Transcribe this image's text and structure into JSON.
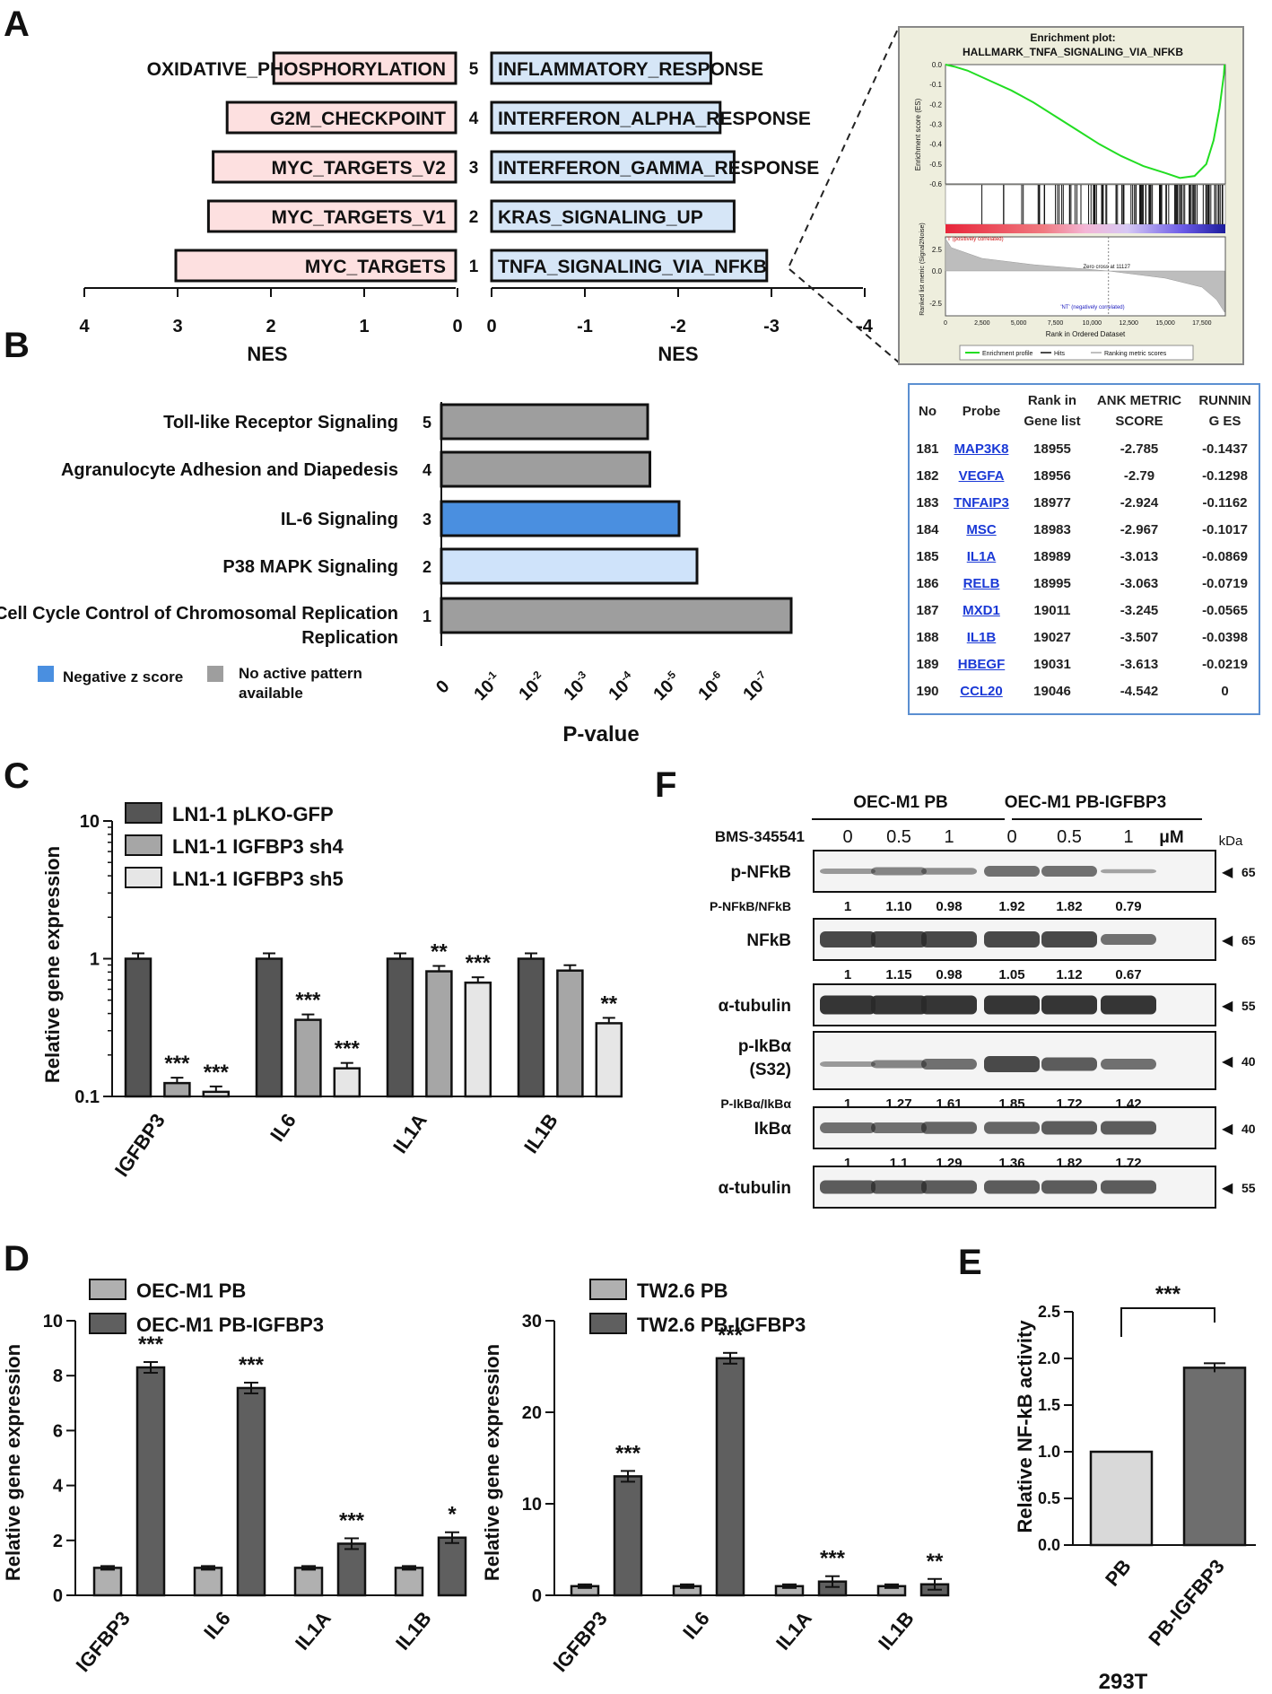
{
  "panel_letters": {
    "A": "A",
    "B": "B",
    "C": "C",
    "D": "D",
    "E": "E",
    "F": "F"
  },
  "panel_A": {
    "left": {
      "xlabel": "NES",
      "ticks": [
        "4",
        "3",
        "2",
        "1",
        "0"
      ],
      "bars": [
        {
          "rank": "5",
          "label": "OXIDATIVE_PHOSPHORYLATION",
          "nes": 1.95
        },
        {
          "rank": "4",
          "label": "G2M_CHECKPOINT",
          "nes": 2.45
        },
        {
          "rank": "3",
          "label": "MYC_TARGETS_V2",
          "nes": 2.6
        },
        {
          "rank": "2",
          "label": "MYC_TARGETS_V1",
          "nes": 2.65
        },
        {
          "rank": "1",
          "label": "MYC_TARGETS",
          "nes": 3.0
        }
      ]
    },
    "right": {
      "xlabel": "NES",
      "ticks": [
        "0",
        "-1",
        "-2",
        "-3",
        "-4"
      ],
      "bars": [
        {
          "label": "INFLAMMATORY_RESPONSE",
          "nes": -2.35
        },
        {
          "label": "INTERFERON_ALPHA_RESPONSE",
          "nes": -2.45
        },
        {
          "label": "INTERFERON_GAMMA_RESPONSE",
          "nes": -2.6
        },
        {
          "label": "KRAS_SIGNALING_UP",
          "nes": -2.6
        },
        {
          "label": "TNFA_SIGNALING_VIA_NFKB",
          "nes": -2.95
        }
      ]
    },
    "gsea": {
      "title1": "Enrichment plot:",
      "title2": "HALLMARK_TNFA_SIGNALING_VIA_NFKB",
      "es_ylabel": "Enrichment score (ES)",
      "es_ticks": [
        "0.0",
        "-0.1",
        "-0.2",
        "-0.3",
        "-0.4",
        "-0.5",
        "-0.6"
      ],
      "rank_ylabel": "Ranked list metric (Signal2Noise)",
      "rank_ticks": [
        "2.5",
        "0.0",
        "-2.5"
      ],
      "pos_label": "'I' (positively correlated)",
      "neg_label": "'NT' (negatively correlated)",
      "zero_cross": "Zero cross at 11127",
      "x_ticks": [
        "0",
        "2,500",
        "5,000",
        "7,500",
        "10,000",
        "12,500",
        "15,000",
        "17,500"
      ],
      "xlabel": "Rank in Ordered Dataset",
      "legend": [
        "Enrichment profile",
        "Hits",
        "Ranking metric scores"
      ]
    },
    "table": {
      "headers": [
        "No",
        "Probe",
        "Rank in Gene list",
        "ANK METRIC SCORE",
        "RUNNIN G ES"
      ],
      "rows": [
        [
          "181",
          "MAP3K8",
          "18955",
          "-2.785",
          "-0.1437"
        ],
        [
          "182",
          "VEGFA",
          "18956",
          "-2.79",
          "-0.1298"
        ],
        [
          "183",
          "TNFAIP3",
          "18977",
          "-2.924",
          "-0.1162"
        ],
        [
          "184",
          "MSC",
          "18983",
          "-2.967",
          "-0.1017"
        ],
        [
          "185",
          "IL1A",
          "18989",
          "-3.013",
          "-0.0869"
        ],
        [
          "186",
          "RELB",
          "18995",
          "-3.063",
          "-0.0719"
        ],
        [
          "187",
          "MXD1",
          "19011",
          "-3.245",
          "-0.0565"
        ],
        [
          "188",
          "IL1B",
          "19027",
          "-3.507",
          "-0.0398"
        ],
        [
          "189",
          "HBEGF",
          "19031",
          "-3.613",
          "-0.0219"
        ],
        [
          "190",
          "CCL20",
          "19046",
          "-4.542",
          "0"
        ]
      ]
    }
  },
  "panel_B": {
    "xlabel": "P-value",
    "bars": [
      {
        "rank": "5",
        "label": "Toll-like Receptor Signaling",
        "neglog10p": 4.6,
        "color": "#9e9e9e"
      },
      {
        "rank": "4",
        "label": "Agranulocyte Adhesion and Diapedesis",
        "neglog10p": 4.65,
        "color": "#9e9e9e"
      },
      {
        "rank": "3",
        "label": "IL-6 Signaling",
        "neglog10p": 5.3,
        "color": "#4a8fe0"
      },
      {
        "rank": "2",
        "label": "P38 MAPK Signaling",
        "neglog10p": 5.7,
        "color": "#cfe3fa"
      },
      {
        "rank": "1",
        "label": "Cell Cycle Control of Chromosomal Replication",
        "neglog10p": 7.8,
        "color": "#9e9e9e"
      }
    ],
    "label_line2": "Replication",
    "legend": [
      {
        "label": "Negative z score",
        "color": "#4a8fe0"
      },
      {
        "label": "No active pattern",
        "label2": "available",
        "color": "#9e9e9e"
      }
    ]
  },
  "panel_C": {
    "ylabel": "Relative gene expression",
    "yticks": [
      "10",
      "1",
      "0.1"
    ],
    "series": [
      {
        "name": "LN1-1 pLKO-GFP",
        "color": "#555555"
      },
      {
        "name": "LN1-1 IGFBP3 sh4",
        "color": "#a6a6a6"
      },
      {
        "name": "LN1-1 IGFBP3 sh5",
        "color": "#e6e6e6"
      }
    ],
    "categories": [
      "IGFBP3",
      "IL6",
      "IL1A",
      "IL1B"
    ],
    "values": [
      [
        1.0,
        0.125,
        0.108
      ],
      [
        1.0,
        0.36,
        0.16
      ],
      [
        1.0,
        0.81,
        0.67
      ],
      [
        1.0,
        0.82,
        0.34
      ]
    ],
    "sig": [
      [
        "",
        "***",
        "***"
      ],
      [
        "",
        "***",
        "***"
      ],
      [
        "",
        "**",
        "***"
      ],
      [
        "",
        "",
        "**"
      ]
    ]
  },
  "panel_D1": {
    "ylabel": "Relative gene expression",
    "yticks": [
      "0",
      "2",
      "4",
      "6",
      "8",
      "10"
    ],
    "series": [
      {
        "name": "OEC-M1 PB",
        "color": "#b0b0b0"
      },
      {
        "name": "OEC-M1 PB-IGFBP3",
        "color": "#5f5f5f"
      }
    ],
    "categories": [
      "IGFBP3",
      "IL6",
      "IL1A",
      "IL1B"
    ],
    "values": [
      [
        1.0,
        8.3
      ],
      [
        1.0,
        7.55
      ],
      [
        1.0,
        1.88
      ],
      [
        1.0,
        2.1
      ]
    ],
    "sig": [
      "***",
      "***",
      "***",
      "*"
    ]
  },
  "panel_D2": {
    "ylabel": "Relative gene expression",
    "yticks": [
      "0",
      "10",
      "20",
      "30"
    ],
    "series": [
      {
        "name": "TW2.6 PB",
        "color": "#b0b0b0"
      },
      {
        "name": "TW2.6 PB-IGFBP3",
        "color": "#5f5f5f"
      }
    ],
    "categories": [
      "IGFBP3",
      "IL6",
      "IL1A",
      "IL1B"
    ],
    "values": [
      [
        1.0,
        13.0
      ],
      [
        1.0,
        25.9
      ],
      [
        1.0,
        1.5
      ],
      [
        1.0,
        1.2
      ]
    ],
    "sig": [
      "***",
      "***",
      "***",
      "**"
    ]
  },
  "panel_E": {
    "ylabel": "Relative NF-kB activity",
    "yticks": [
      "0.0",
      "0.5",
      "1.0",
      "1.5",
      "2.0",
      "2.5"
    ],
    "categories": [
      "PB",
      "PB-IGFBP3"
    ],
    "values": [
      1.0,
      1.9
    ],
    "sig": "***",
    "cell_line": "293T"
  },
  "panel_F": {
    "group1": "OEC-M1 PB",
    "group2": "OEC-M1 PB-IGFBP3",
    "drug": "BMS-345541",
    "doses": [
      "0",
      "0.5",
      "1",
      "0",
      "0.5",
      "1"
    ],
    "unit": "μM",
    "kda": "kDa",
    "blots": [
      {
        "label": "p-NFkB",
        "label2": "",
        "kda": "65",
        "quant_label": "P-NFkB/NFkB",
        "quant": [
          "1",
          "1.10",
          "0.98",
          "1.92",
          "1.82",
          "0.79"
        ]
      },
      {
        "label": "NFkB",
        "label2": "",
        "kda": "65",
        "quant_label": "",
        "quant": [
          "1",
          "1.15",
          "0.98",
          "1.05",
          "1.12",
          "0.67"
        ]
      },
      {
        "label": "α-tubulin",
        "label2": "",
        "kda": "55",
        "quant_label": "",
        "quant": []
      },
      {
        "label": "p-IkBα",
        "label2": "(S32)",
        "kda": "40",
        "quant_label": "P-IkBα/IkBα",
        "quant": [
          "1",
          "1.27",
          "1.61",
          "1.85",
          "1.72",
          "1.42"
        ]
      },
      {
        "label": "IkBα",
        "label2": "",
        "kda": "40",
        "quant_label": "",
        "quant": [
          "1",
          "1.1",
          "1.29",
          "1.36",
          "1.82",
          "1.72"
        ]
      },
      {
        "label": "α-tubulin",
        "label2": "",
        "kda": "55",
        "quant_label": "",
        "quant": []
      }
    ]
  }
}
